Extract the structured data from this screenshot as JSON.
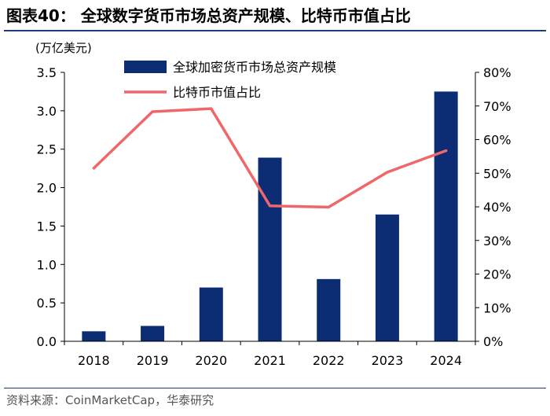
{
  "figure_title": "图表40：  全球数字货币市场总资产规模、比特币市值占比",
  "source": "资料来源：CoinMarketCap，华泰研究",
  "chart_data": {
    "type": "bar",
    "categories": [
      "2018",
      "2019",
      "2020",
      "2021",
      "2022",
      "2023",
      "2024"
    ],
    "series": [
      {
        "name": "全球加密货币市场总资产规模",
        "type": "bar",
        "axis": "left",
        "color": "#0c2c74",
        "values": [
          0.13,
          0.2,
          0.7,
          2.39,
          0.81,
          1.65,
          3.25
        ]
      },
      {
        "name": "比特币市值占比",
        "type": "line",
        "axis": "right",
        "color": "#f0676a",
        "values": [
          51.5,
          68.3,
          69.2,
          40.3,
          39.9,
          50.3,
          56.7
        ]
      }
    ],
    "left_axis": {
      "unit_label": "(万亿美元)",
      "ylim": [
        0,
        3.5
      ],
      "ticks": [
        0,
        0.5,
        1.0,
        1.5,
        2.0,
        2.5,
        3.0,
        3.5
      ],
      "tick_labels": [
        "0.0",
        "0.5",
        "1.0",
        "1.5",
        "2.0",
        "2.5",
        "3.0",
        "3.5"
      ]
    },
    "right_axis": {
      "ylim": [
        0,
        80
      ],
      "ticks": [
        0,
        10,
        20,
        30,
        40,
        50,
        60,
        70,
        80
      ],
      "tick_labels": [
        "0%",
        "10%",
        "20%",
        "30%",
        "40%",
        "50%",
        "60%",
        "70%",
        "80%"
      ]
    },
    "grid": false,
    "legend_placement": "top-left"
  }
}
